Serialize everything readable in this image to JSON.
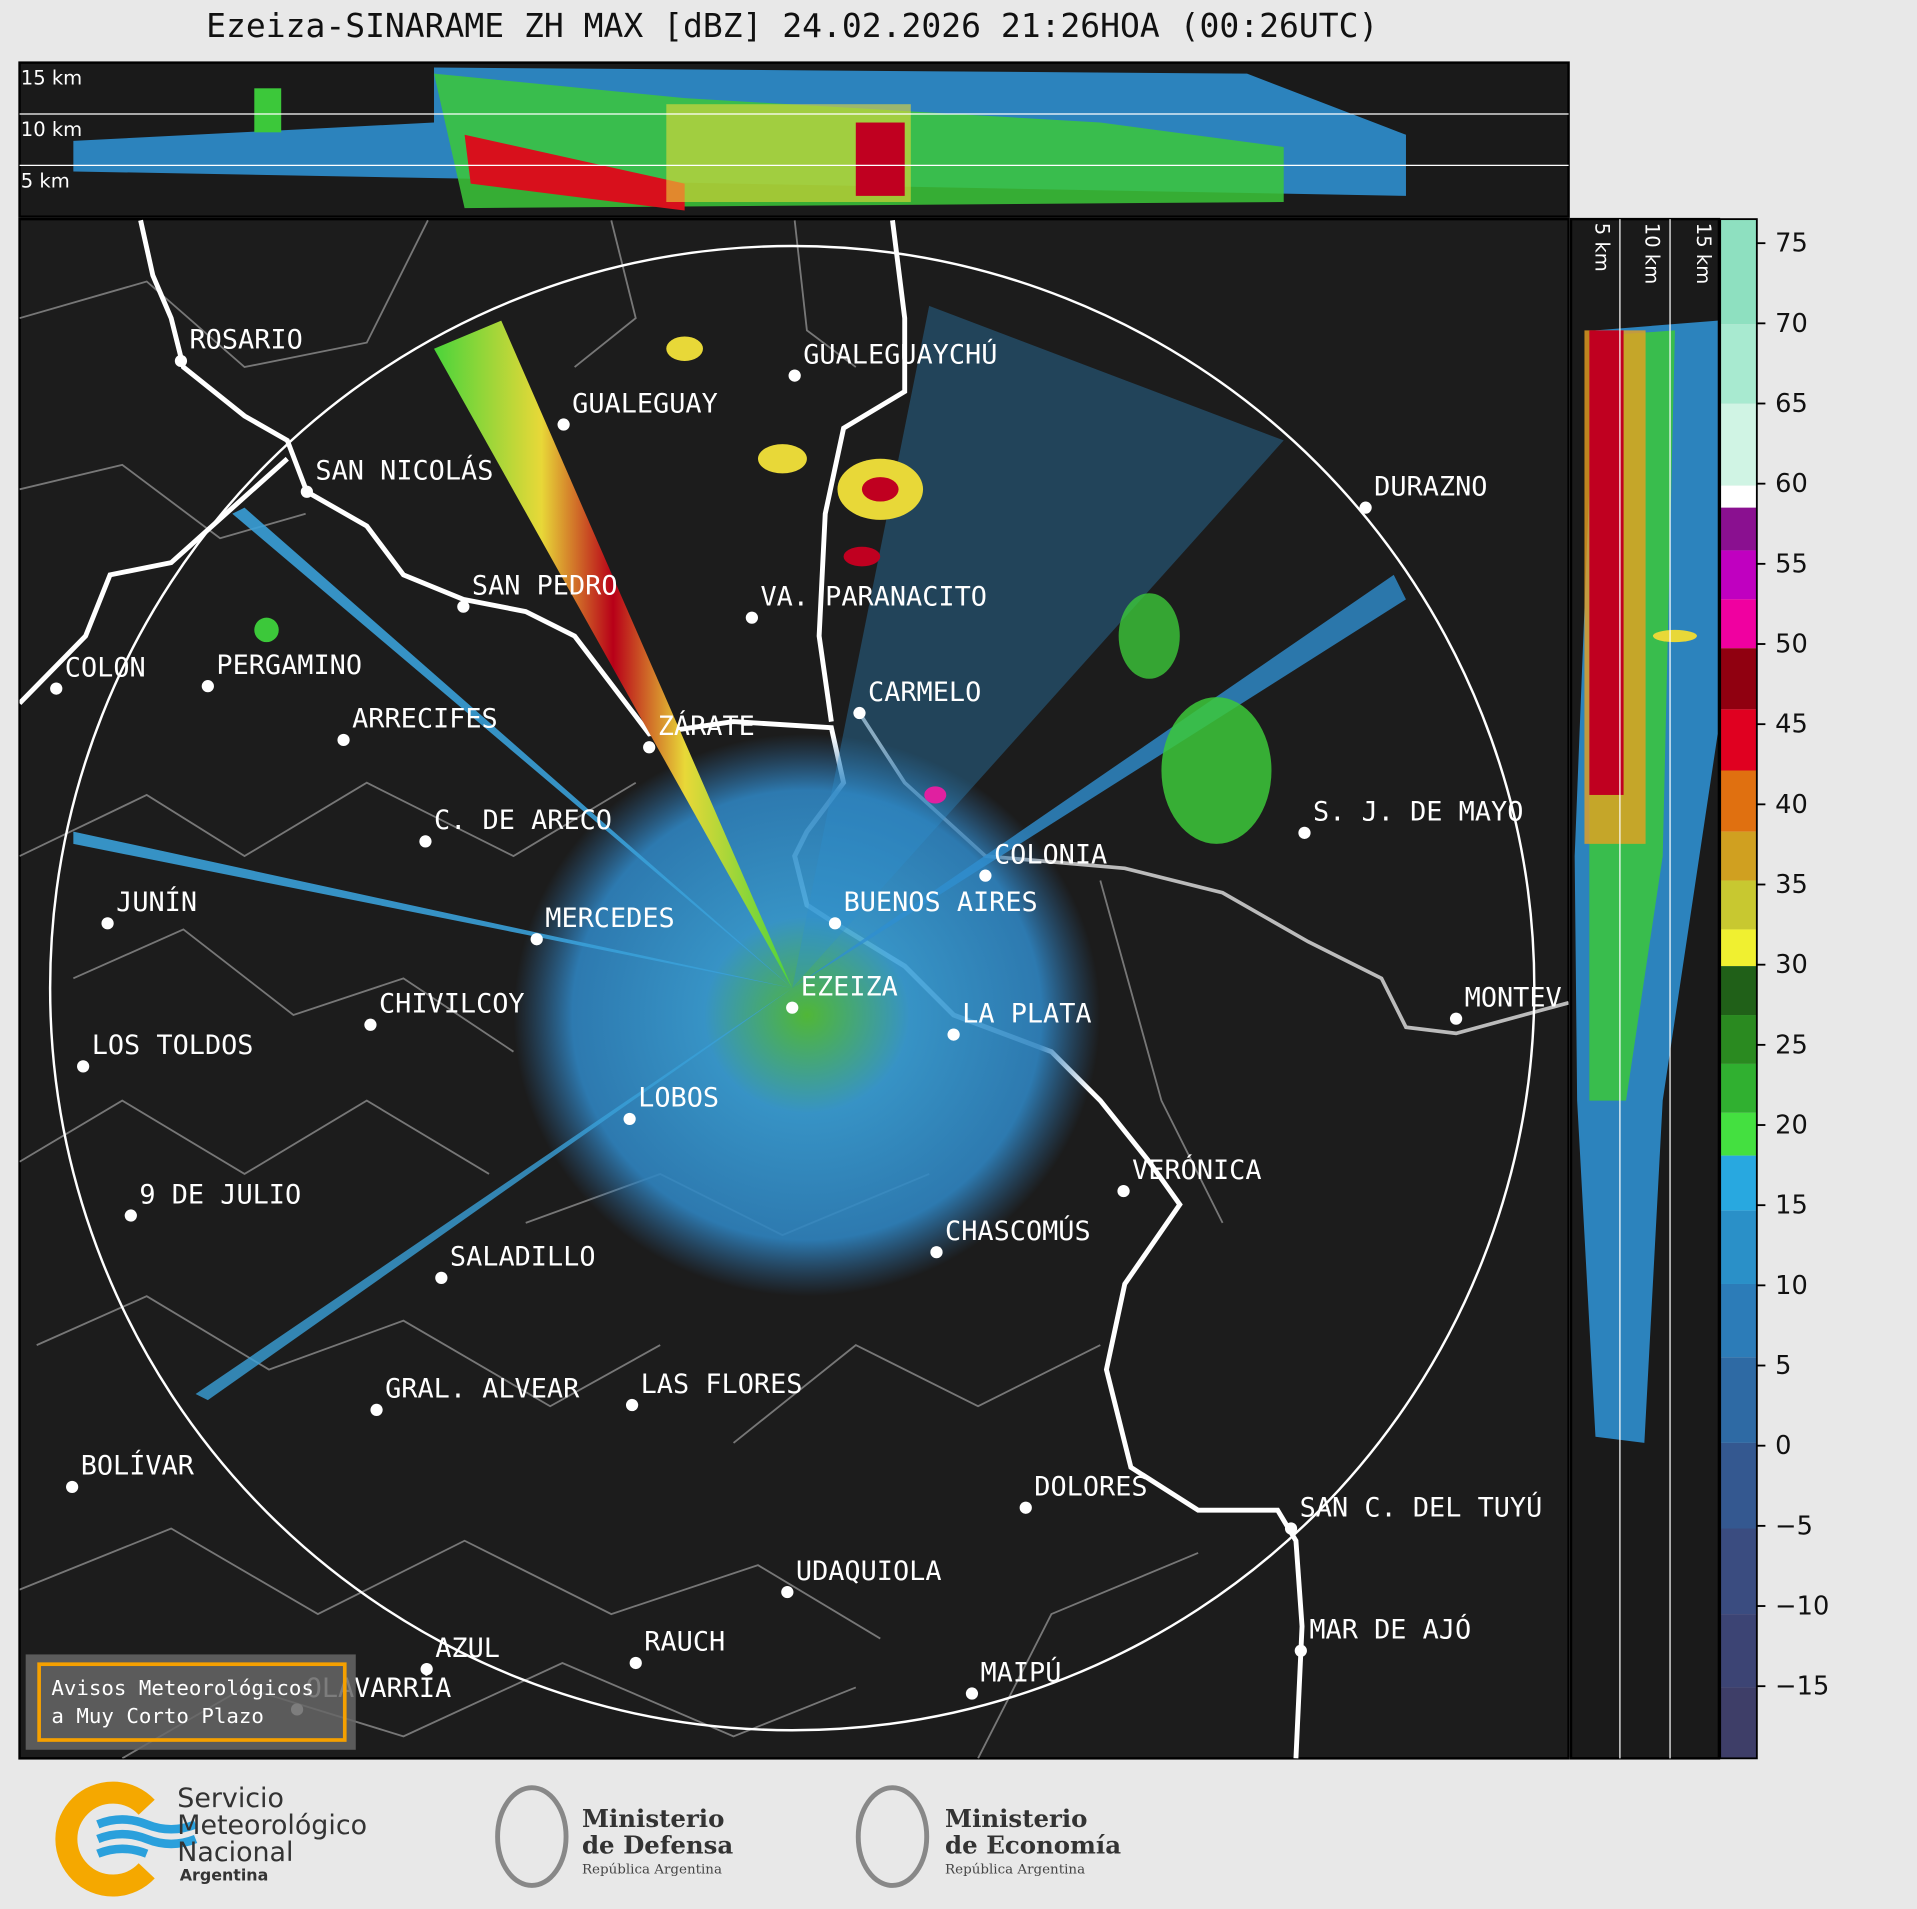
{
  "header": {
    "title": "Ezeiza-SINARAME ZH MAX [dBZ] 24.02.2026 21:26HOA (00:26UTC)"
  },
  "cross_section_top": {
    "labels": [
      "15 km",
      "10 km",
      "5 km"
    ]
  },
  "cross_section_right": {
    "labels": [
      "5 km",
      "10 km",
      "15 km"
    ]
  },
  "colorbar": {
    "range": [
      -19.5,
      76.5
    ],
    "ticks": [
      75,
      70,
      65,
      60,
      55,
      50,
      45,
      40,
      35,
      30,
      25,
      20,
      15,
      10,
      5,
      0,
      {
        "value": -5,
        "label": "−5"
      },
      {
        "value": -10,
        "label": "−10"
      },
      {
        "value": -15,
        "label": "−15"
      }
    ]
  },
  "map": {
    "places": [
      "ROSARIO",
      "GUALEGUAYCHÚ",
      "GUALEGUAY",
      "SAN NICOLÁS",
      "DURAZNO",
      "SAN PEDRO",
      "VA. PARANACITO",
      "COLON",
      "PERGAMINO",
      "CARMELO",
      "ARRECIFES",
      "ZÁRATE",
      "S. J. DE MAYO",
      "C. DE ARECO",
      "COLONIA",
      "BUENOS AIRES",
      "JUNÍN",
      "MERCEDES",
      "EZEIZA",
      "MONTEV",
      "CHIVILCOY",
      "LA PLATA",
      "LOS TOLDOS",
      "LOBOS",
      "VERÓNICA",
      "9 DE JULIO",
      "CHASCOMÚS",
      "SALADILLO",
      "GRAL. ALVEAR",
      "LAS FLORES",
      "BOLÍVAR",
      "DOLORES",
      "SAN C. DEL TUYÚ",
      "UDAQUIOLA",
      "MAR DE AJÓ",
      "RAUCH",
      "AZUL",
      "OLAVARRÍA",
      "MAIPÚ"
    ]
  },
  "notice": {
    "lines": [
      "Avisos Meteorológicos",
      "a Muy Corto Plazo"
    ]
  },
  "footer": {
    "smn": {
      "lines": [
        "Servicio",
        "Meteorológico",
        "Nacional"
      ],
      "country": "Argentina"
    },
    "defensa": {
      "lines": [
        "Ministerio",
        "de Defensa"
      ],
      "country": "República Argentina"
    },
    "economia": {
      "lines": [
        "Ministerio",
        "de Economía"
      ],
      "country": "República Argentina"
    }
  }
}
